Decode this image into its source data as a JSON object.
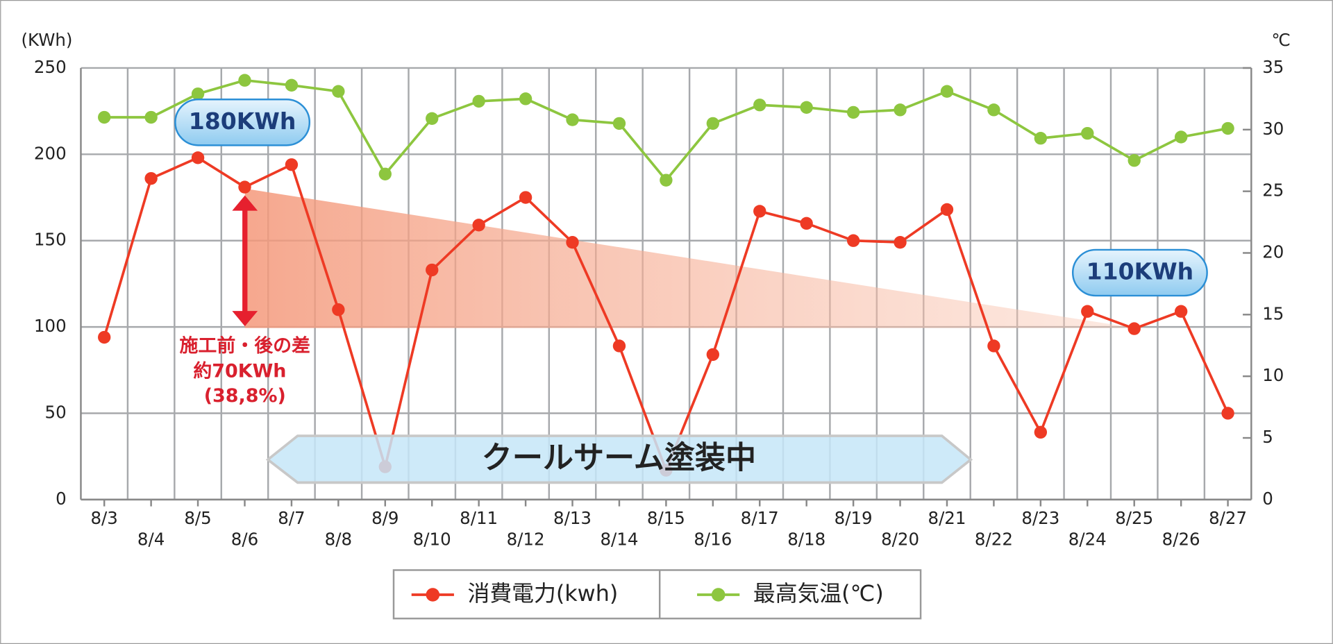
{
  "chart_data": {
    "type": "line",
    "y_unit_label": "(KWh)",
    "y2_unit_label": "℃",
    "categories": [
      "8/3",
      "8/4",
      "8/5",
      "8/6",
      "8/7",
      "8/8",
      "8/9",
      "8/10",
      "8/11",
      "8/12",
      "8/13",
      "8/14",
      "8/15",
      "8/16",
      "8/17",
      "8/18",
      "8/19",
      "8/20",
      "8/21",
      "8/22",
      "8/23",
      "8/24",
      "8/25",
      "8/26",
      "8/27"
    ],
    "series": [
      {
        "name": "消費電力(kwh)",
        "color": "#ee3a24",
        "axis": "y",
        "values": [
          94,
          186,
          198,
          181,
          194,
          110,
          19,
          133,
          159,
          175,
          149,
          89,
          17,
          84,
          167,
          160,
          150,
          149,
          168,
          89,
          39,
          109,
          99,
          109,
          50
        ]
      },
      {
        "name": "最高気温(℃)",
        "color": "#8dc63f",
        "axis": "y2",
        "values": [
          31.0,
          31.0,
          32.9,
          34.0,
          33.6,
          33.1,
          26.4,
          30.9,
          32.3,
          32.5,
          30.8,
          30.5,
          25.9,
          30.5,
          32.0,
          31.8,
          31.4,
          31.6,
          33.1,
          31.6,
          29.3,
          29.7,
          27.5,
          29.4,
          30.1
        ]
      }
    ],
    "ylim": [
      0,
      250
    ],
    "yticks": [
      0,
      50,
      100,
      150,
      200,
      250
    ],
    "y2lim": [
      0,
      35
    ],
    "y2ticks": [
      0,
      5,
      10,
      15,
      20,
      25,
      30,
      35
    ],
    "grid": true,
    "annotations": {
      "before": "180KWh",
      "after": "110KWh",
      "diff_title": "施工前・後の差",
      "diff_value": "約70KWh",
      "diff_percent": "(38,8%)",
      "banner": "クールサーム塗装中"
    }
  }
}
